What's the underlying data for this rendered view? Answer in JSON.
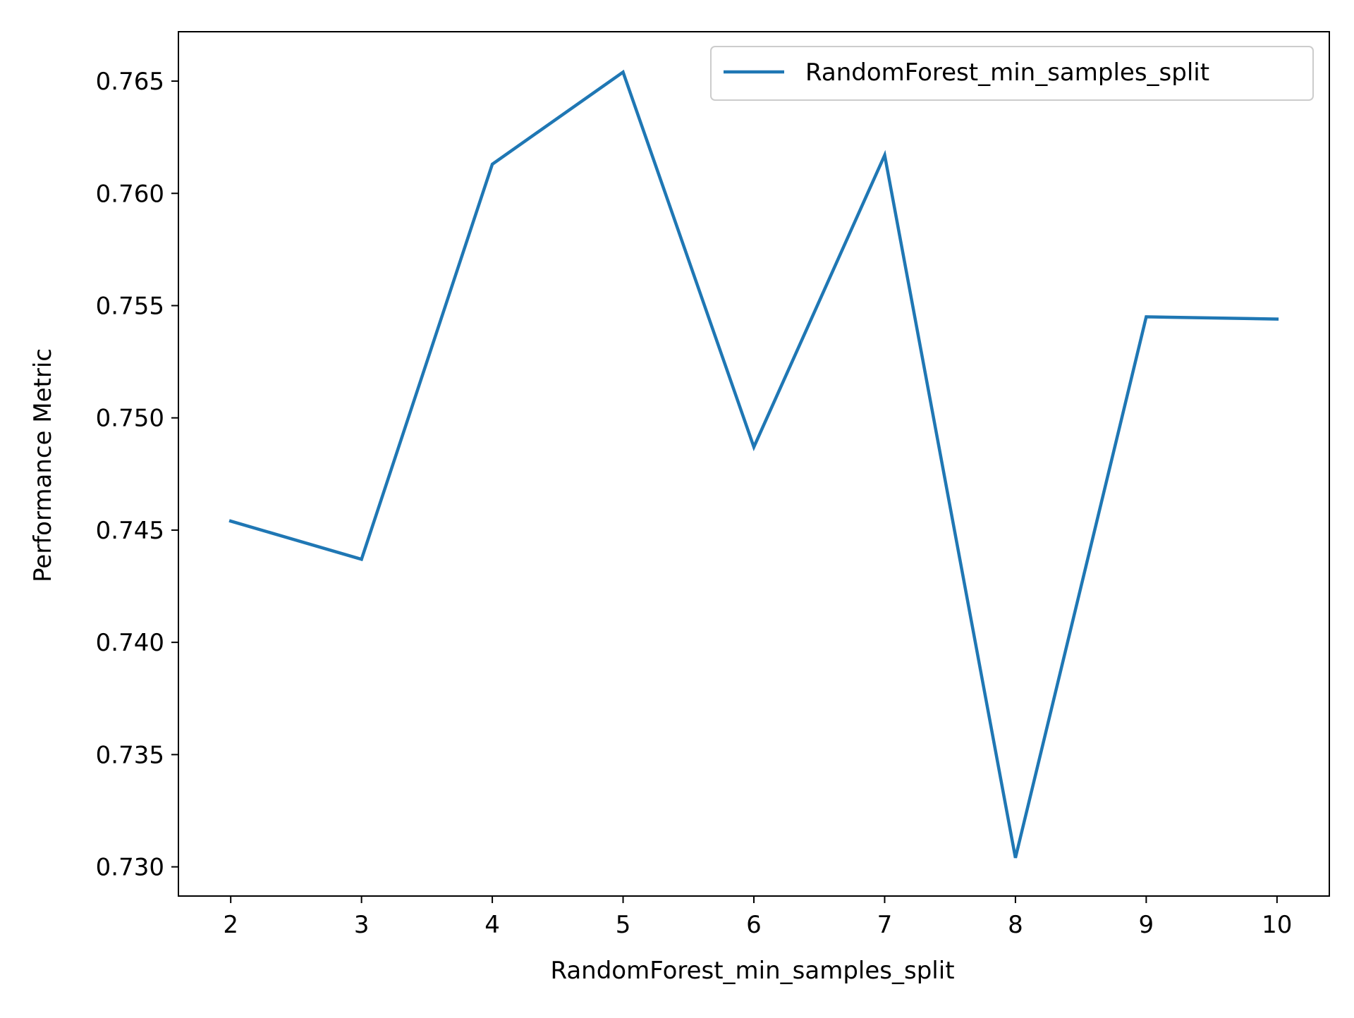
{
  "chart_data": {
    "type": "line",
    "title": "",
    "xlabel": "RandomForest_min_samples_split",
    "ylabel": "Performance Metric",
    "x": [
      2,
      3,
      4,
      5,
      6,
      7,
      8,
      9,
      10
    ],
    "xlim": [
      1.6,
      10.4
    ],
    "ylim": [
      0.7287,
      0.7672
    ],
    "xticks": [
      2,
      3,
      4,
      5,
      6,
      7,
      8,
      9,
      10
    ],
    "yticks": [
      0.73,
      0.735,
      0.74,
      0.745,
      0.75,
      0.755,
      0.76,
      0.765
    ],
    "ytick_labels": [
      "0.730",
      "0.735",
      "0.740",
      "0.745",
      "0.750",
      "0.755",
      "0.760",
      "0.765"
    ],
    "grid": false,
    "legend_position": "top-right",
    "series": [
      {
        "name": "RandomForest_min_samples_split",
        "color": "#1f77b4",
        "values": [
          0.7454,
          0.7437,
          0.7613,
          0.7654,
          0.7487,
          0.7617,
          0.7304,
          0.7545,
          0.7544
        ]
      }
    ]
  }
}
